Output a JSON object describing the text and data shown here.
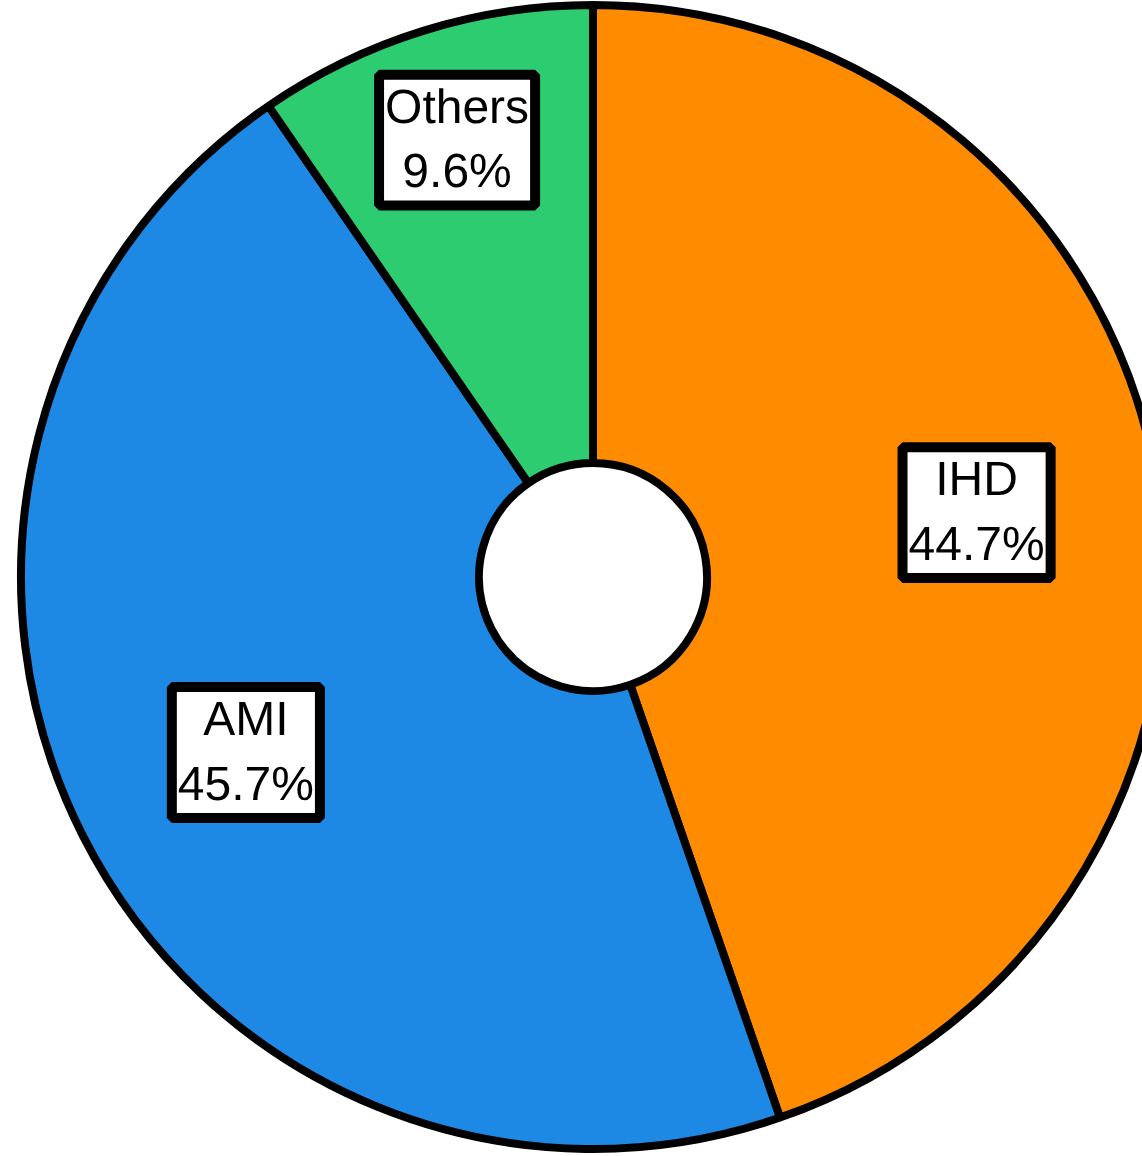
{
  "chart_data": {
    "type": "donut",
    "categories": [
      "IHD",
      "AMI",
      "Others"
    ],
    "values": [
      44.7,
      45.7,
      9.6
    ],
    "colors": [
      "#ff8c00",
      "#1e88e5",
      "#2ecc71"
    ],
    "value_labels": [
      "44.7%",
      "45.7%",
      "9.6%"
    ]
  }
}
